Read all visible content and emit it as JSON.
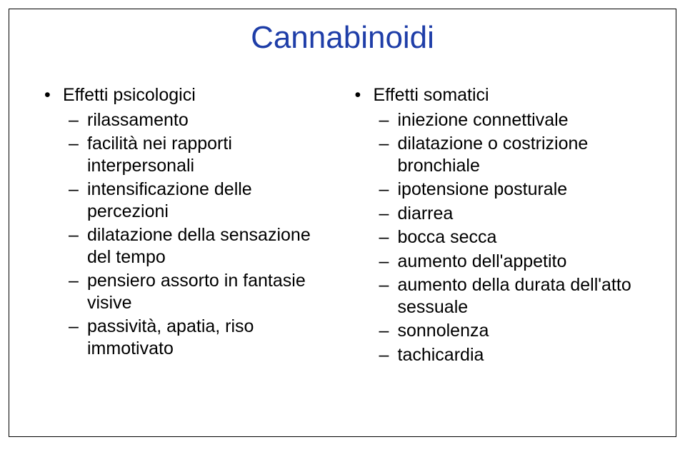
{
  "title": "Cannabinoidi",
  "title_color": "#1f3ea8",
  "title_fontsize": 44,
  "body_fontsize": 25,
  "body_color": "#000000",
  "background_color": "#ffffff",
  "left": {
    "heading": "Effetti psicologici",
    "items": [
      "rilassamento",
      "facilità nei rapporti interpersonali",
      "intensificazione delle percezioni",
      "dilatazione della sensazione del tempo",
      "pensiero assorto in fantasie visive",
      "passività, apatia, riso immotivato"
    ]
  },
  "right": {
    "heading": "Effetti somatici",
    "items": [
      "iniezione connettivale",
      "dilatazione o costrizione bronchiale",
      "ipotensione posturale",
      "diarrea",
      "bocca secca",
      "aumento dell'appetito",
      "aumento della durata dell'atto sessuale",
      "sonnolenza",
      "tachicardia"
    ]
  }
}
